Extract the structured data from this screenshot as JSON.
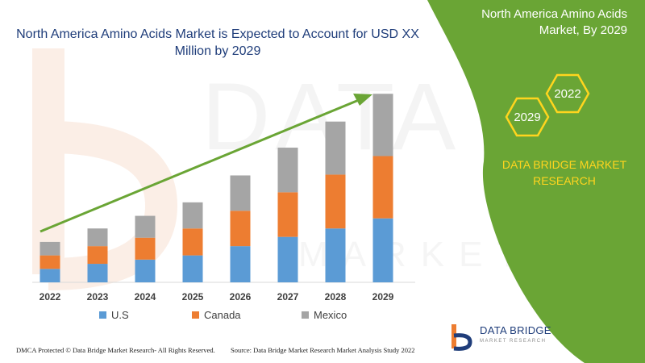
{
  "chart_data": {
    "type": "bar",
    "stacked": true,
    "title": "North America Amino Acids Market is Expected to Account for USD XX Million by 2029",
    "categories": [
      "2022",
      "2023",
      "2024",
      "2025",
      "2026",
      "2027",
      "2028",
      "2029"
    ],
    "series": [
      {
        "name": "U.S",
        "color": "#5b9bd5",
        "values": [
          16,
          22,
          27,
          32,
          43,
          54,
          64,
          76
        ]
      },
      {
        "name": "Canada",
        "color": "#ed7d31",
        "values": [
          16,
          21,
          26,
          32,
          42,
          53,
          64,
          74
        ]
      },
      {
        "name": "Mexico",
        "color": "#a5a5a5",
        "values": [
          16,
          21,
          26,
          31,
          42,
          53,
          63,
          74
        ]
      }
    ],
    "xlabel": "",
    "ylabel": "",
    "ylim": [
      0,
      230
    ],
    "grid": false,
    "legend_position": "bottom",
    "trend_arrow": true
  },
  "panel": {
    "title": "North America Amino Acids Market, By 2029",
    "hex_a": "2029",
    "hex_b": "2022",
    "brand": "DATA BRIDGE MARKET RESEARCH",
    "green": "#6aa535"
  },
  "legend": {
    "us": "U.S",
    "canada": "Canada",
    "mexico": "Mexico"
  },
  "footer": {
    "left": "DMCA Protected © Data Bridge Market Research- All Rights Reserved.",
    "right": "Source: Data Bridge Market Research Market Analysis Study 2022"
  },
  "logo": {
    "name": "DATA BRIDGE",
    "tagline": "MARKET RESEARCH"
  }
}
